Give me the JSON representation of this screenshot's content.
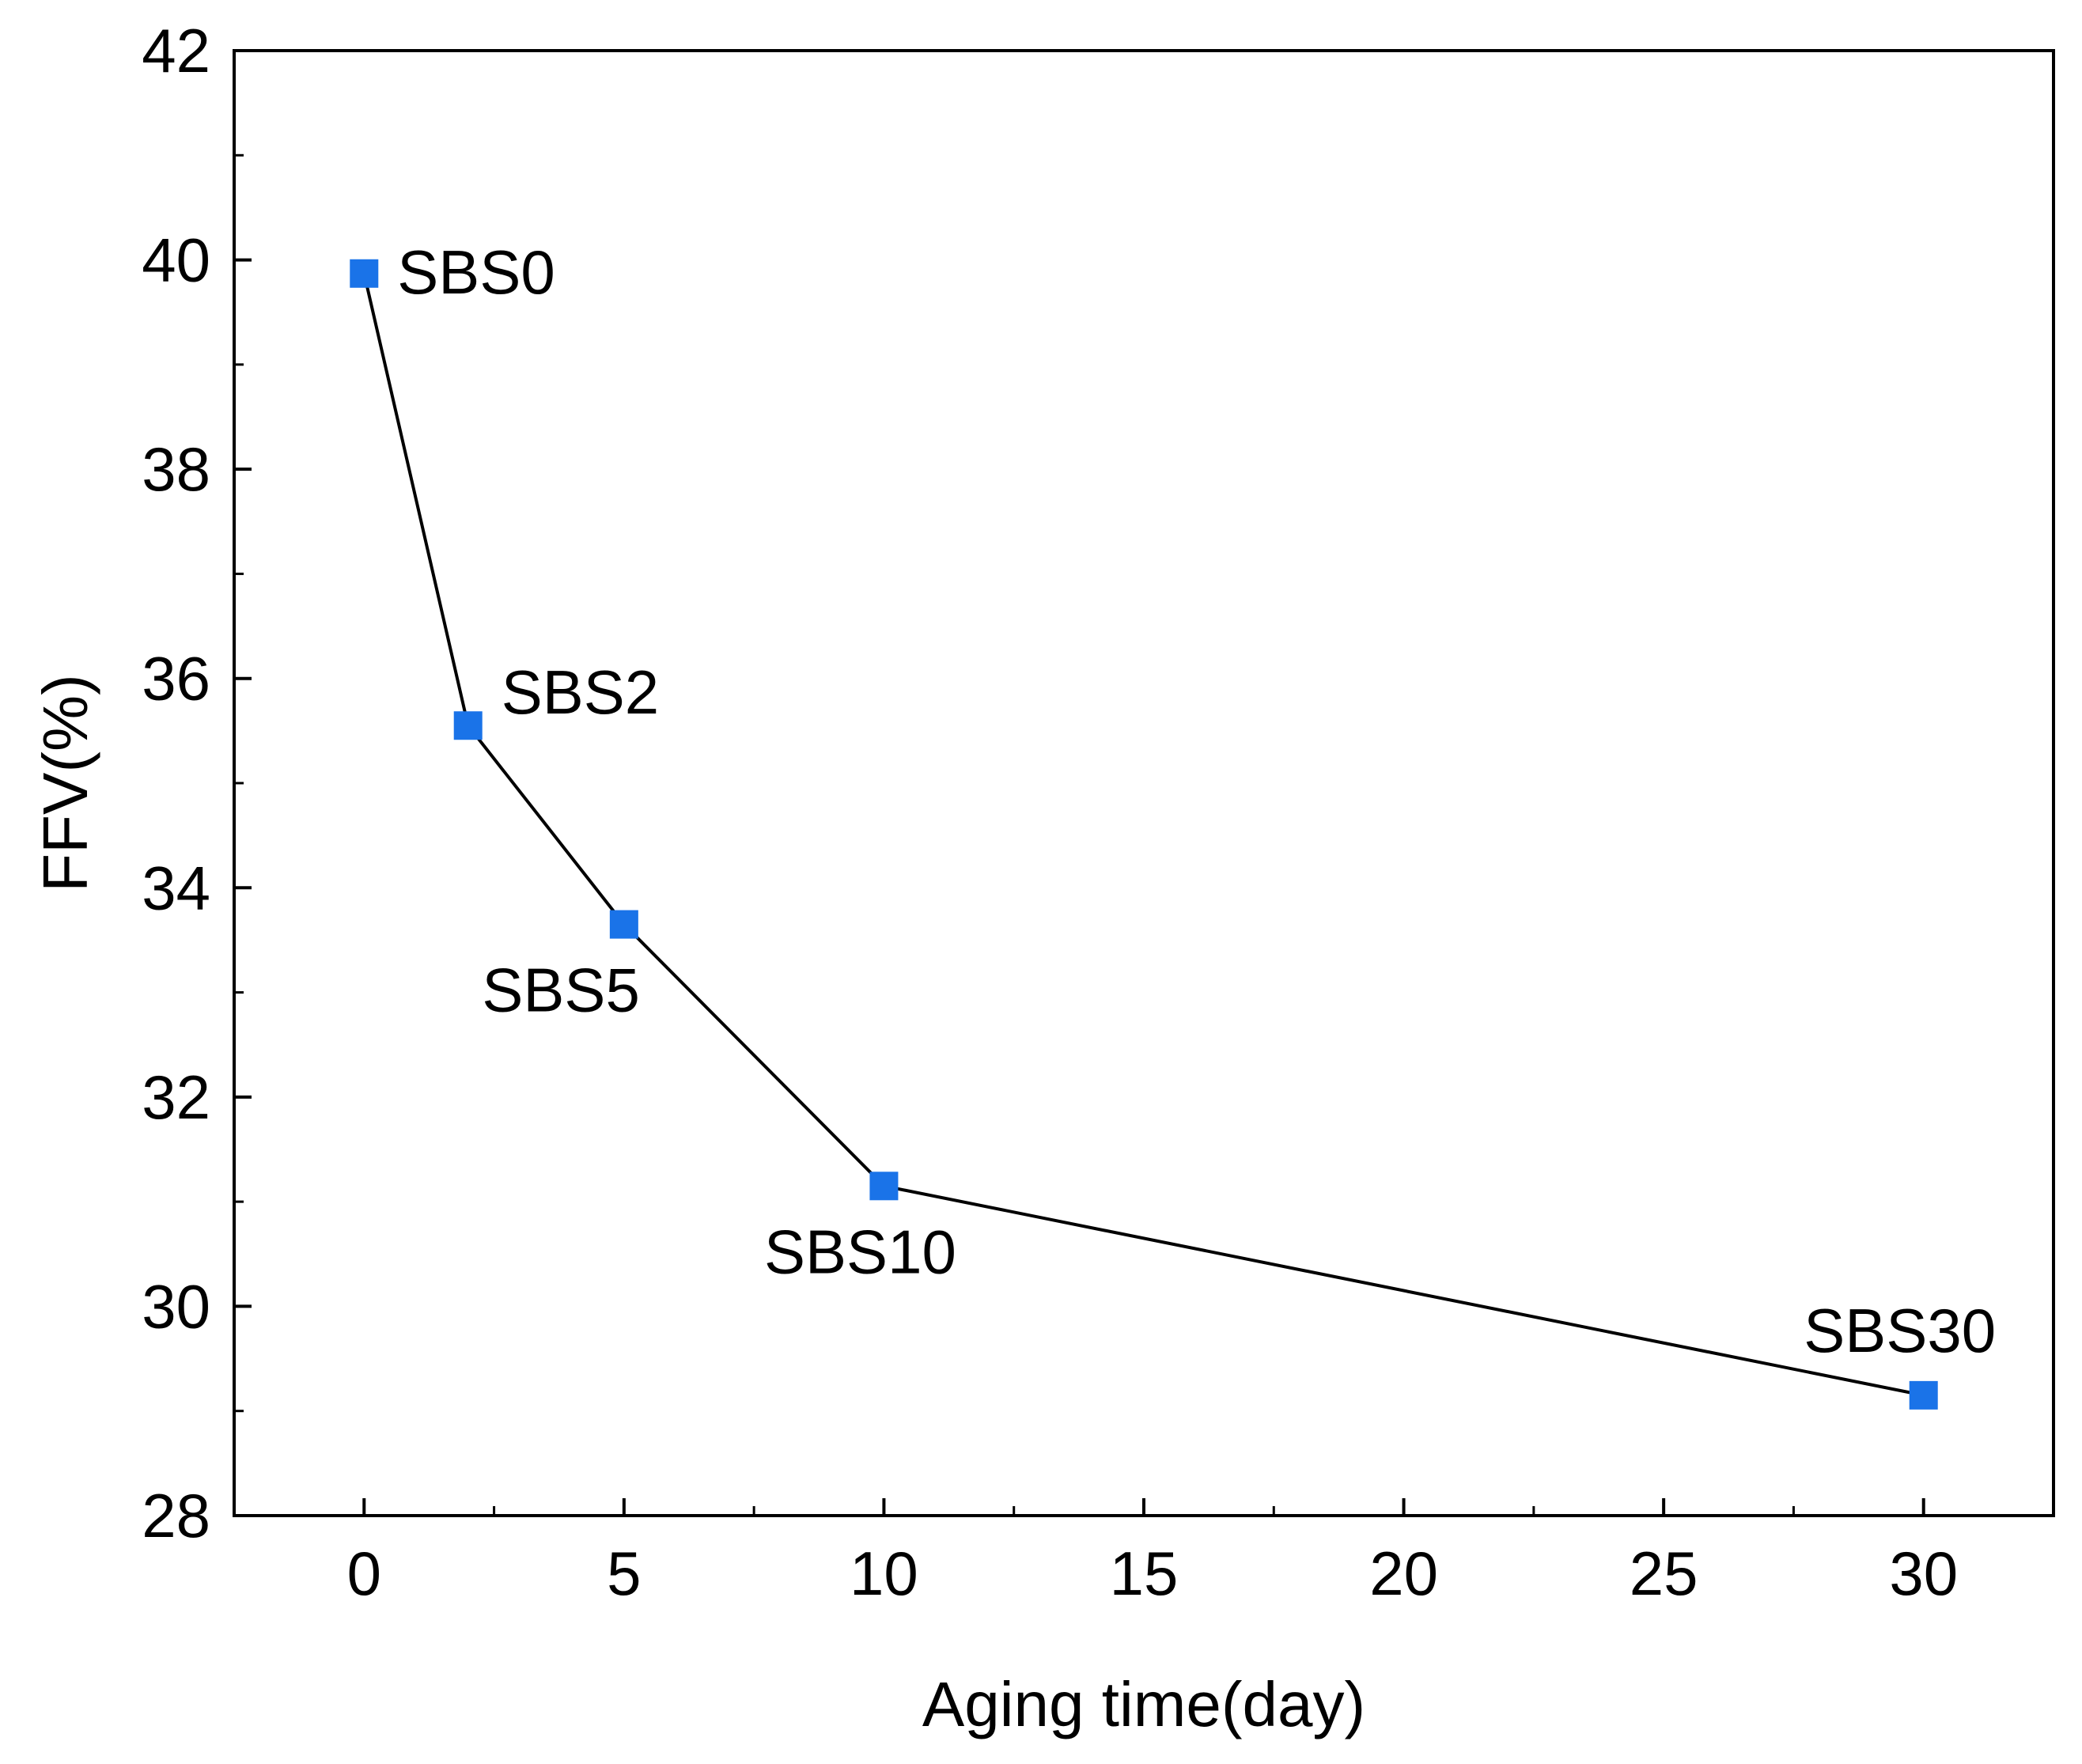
{
  "chart_data": {
    "type": "line",
    "title": "",
    "xlabel": "Aging time(day)",
    "ylabel": "FFV(%)",
    "xlim": [
      -2.5,
      32.5
    ],
    "ylim": [
      28,
      42
    ],
    "x_ticks": [
      0,
      5,
      10,
      15,
      20,
      25,
      30
    ],
    "y_ticks": [
      28,
      30,
      32,
      34,
      36,
      38,
      40,
      42
    ],
    "grid": false,
    "series": [
      {
        "name": "FFV",
        "color": "#1a73e8",
        "line_color": "#000000",
        "marker": "square",
        "points": [
          {
            "x": 0,
            "y": 39.87,
            "label": "SBS0",
            "label_pos": "right"
          },
          {
            "x": 2,
            "y": 35.55,
            "label": "SBS2",
            "label_pos": "upper-right"
          },
          {
            "x": 5,
            "y": 33.65,
            "label": "SBS5",
            "label_pos": "below-left"
          },
          {
            "x": 10,
            "y": 31.15,
            "label": "SBS10",
            "label_pos": "below"
          },
          {
            "x": 30,
            "y": 29.15,
            "label": "SBS30",
            "label_pos": "above"
          }
        ]
      }
    ]
  }
}
